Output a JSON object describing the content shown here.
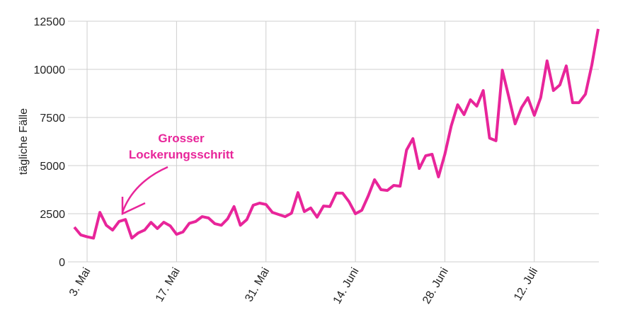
{
  "chart_data": {
    "type": "line",
    "y_label": "tägliche Fälle",
    "annotation": [
      "Grosser",
      "Lockerungsschritt"
    ],
    "categories": [
      null,
      null,
      "3. Mai",
      null,
      null,
      null,
      null,
      null,
      null,
      null,
      null,
      null,
      null,
      null,
      null,
      null,
      "17. Mai",
      null,
      null,
      null,
      null,
      null,
      null,
      null,
      null,
      null,
      null,
      null,
      null,
      null,
      "31. Mai",
      null,
      null,
      null,
      null,
      null,
      null,
      null,
      null,
      null,
      null,
      null,
      null,
      null,
      "14. Juni",
      null,
      null,
      null,
      null,
      null,
      null,
      null,
      null,
      null,
      null,
      null,
      null,
      null,
      "28. Juni",
      null,
      null,
      null,
      null,
      null,
      null,
      null,
      null,
      null,
      null,
      null,
      null,
      null,
      "12. Juli",
      null,
      null,
      null,
      null,
      null,
      null,
      null,
      null,
      null,
      null
    ],
    "series": [
      {
        "name": "tägliche Fälle",
        "color": "#e8259a",
        "values": [
          1800,
          1400,
          1300,
          1230,
          2570,
          1900,
          1650,
          2100,
          2200,
          1230,
          1500,
          1650,
          2050,
          1730,
          2060,
          1870,
          1430,
          1550,
          2000,
          2100,
          2350,
          2280,
          1980,
          1900,
          2240,
          2870,
          1900,
          2200,
          2940,
          3050,
          2980,
          2570,
          2460,
          2350,
          2530,
          3600,
          2610,
          2800,
          2320,
          2900,
          2870,
          3570,
          3570,
          3130,
          2500,
          2680,
          3420,
          4270,
          3750,
          3710,
          3970,
          3930,
          5810,
          6400,
          4850,
          5510,
          5590,
          4410,
          5590,
          7060,
          8160,
          7650,
          8420,
          8090,
          8900,
          6430,
          6290,
          9960,
          8570,
          7170,
          8010,
          8530,
          7610,
          8530,
          10440,
          8900,
          9190,
          10180,
          8270,
          8270,
          8710,
          10220,
          12100
        ]
      }
    ],
    "ylim": [
      0,
      12500
    ],
    "yticks": [
      0,
      2500,
      5000,
      7500,
      10000,
      12500
    ],
    "grid": true
  }
}
